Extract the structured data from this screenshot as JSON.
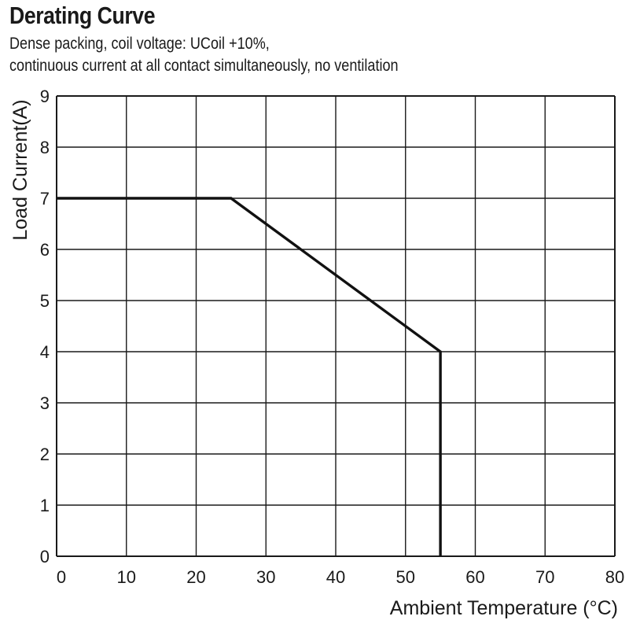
{
  "title": "Derating Curve",
  "subtitle": [
    "Dense packing, coil voltage: UCoil +10%,",
    "continuous current at all contact simultaneously, no ventilation"
  ],
  "colors": {
    "grid": "#1a1a1a",
    "line": "#111111",
    "text": "#1a1a1a"
  },
  "chart_data": {
    "type": "line",
    "title": "Derating Curve",
    "subtitle": "Dense packing, coil voltage: UCoil +10%, continuous current at all contact simultaneously, no ventilation",
    "xlabel": "Ambient Temperature (°C)",
    "ylabel": "Load Current(A)",
    "xlim": [
      0,
      80
    ],
    "ylim": [
      0,
      9
    ],
    "xticks": [
      0,
      10,
      20,
      30,
      40,
      50,
      60,
      70,
      80
    ],
    "yticks": [
      0,
      1,
      2,
      3,
      4,
      5,
      6,
      7,
      8,
      9
    ],
    "grid": true,
    "legend": "none",
    "series": [
      {
        "x": [
          0,
          25,
          55,
          55
        ],
        "y": [
          7,
          7,
          4,
          0
        ]
      }
    ]
  }
}
